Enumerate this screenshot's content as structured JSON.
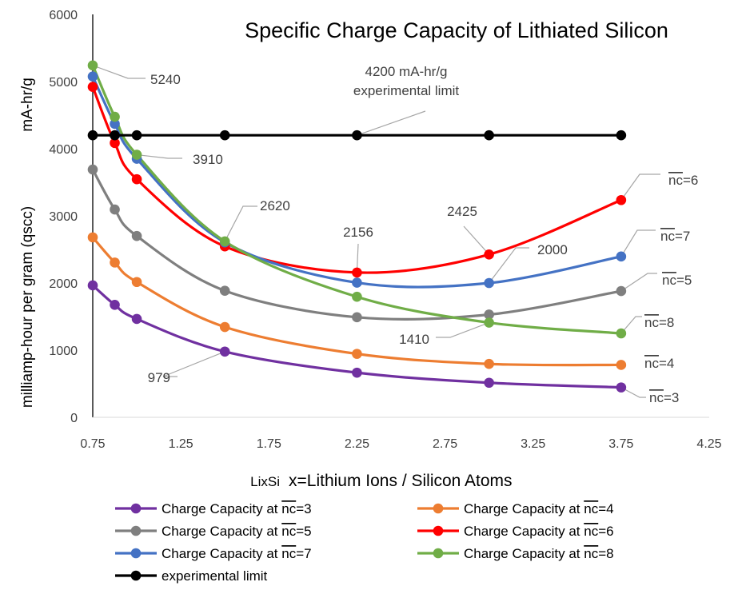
{
  "chart_data": {
    "type": "line",
    "title": "Specific Charge Capacity of Lithiated Silicon",
    "ylabel": "milliamp-hour per gram (qscc)",
    "ylabel_unit": "mA-hr/g",
    "xlabel_formula": "LixSi",
    "xlabel": "x=Lithium Ions / Silicon Atoms",
    "xlim": [
      0.75,
      4.25
    ],
    "ylim": [
      0,
      6000
    ],
    "xticks": [
      "0.75",
      "1.25",
      "1.75",
      "2.25",
      "2.75",
      "3.25",
      "3.75",
      "4.25"
    ],
    "yticks": [
      "0",
      "1000",
      "2000",
      "3000",
      "4000",
      "5000",
      "6000"
    ],
    "grid": false,
    "legend_position": "bottom",
    "series": [
      {
        "name": "Charge Capacity at ",
        "name_over": "nc",
        "name_suffix": "=3",
        "color": "#7030a0",
        "x": [
          0.75,
          0.875,
          1.0,
          1.5,
          2.25,
          3.0,
          3.75
        ],
        "y": [
          1965,
          1675,
          1465,
          979,
          665,
          515,
          445
        ]
      },
      {
        "name": "Charge Capacity at ",
        "name_over": "nc",
        "name_suffix": "=4",
        "color": "#ed7d31",
        "x": [
          0.75,
          0.875,
          1.0,
          1.5,
          2.25,
          3.0,
          3.75
        ],
        "y": [
          2680,
          2305,
          2015,
          1345,
          945,
          795,
          780
        ]
      },
      {
        "name": "Charge Capacity at ",
        "name_over": "nc",
        "name_suffix": "=5",
        "color": "#7f7f7f",
        "x": [
          0.75,
          0.875,
          1.0,
          1.5,
          2.25,
          3.0,
          3.75
        ],
        "y": [
          3690,
          3095,
          2700,
          1885,
          1490,
          1530,
          1880
        ]
      },
      {
        "name": "Charge Capacity at ",
        "name_over": "nc",
        "name_suffix": "=6",
        "color": "#ff0000",
        "x": [
          0.75,
          0.875,
          1.0,
          1.5,
          2.25,
          3.0,
          3.75
        ],
        "y": [
          4920,
          4085,
          3545,
          2545,
          2156,
          2425,
          3235
        ]
      },
      {
        "name": "Charge Capacity at ",
        "name_over": "nc",
        "name_suffix": "=7",
        "color": "#4472c4",
        "x": [
          0.75,
          0.875,
          1.0,
          1.5,
          2.25,
          3.0,
          3.75
        ],
        "y": [
          5075,
          4370,
          3850,
          2605,
          2005,
          2000,
          2395
        ]
      },
      {
        "name": "Charge Capacity at ",
        "name_over": "nc",
        "name_suffix": "=8",
        "color": "#70ad47",
        "x": [
          0.75,
          0.875,
          1.0,
          1.5,
          2.25,
          3.0,
          3.75
        ],
        "y": [
          5240,
          4475,
          3910,
          2620,
          1795,
          1410,
          1250
        ]
      },
      {
        "name": "experimental limit",
        "color": "#000000",
        "straight": true,
        "x": [
          0.75,
          0.875,
          1.0,
          1.5,
          2.25,
          3.0,
          3.75
        ],
        "y": [
          4200,
          4200,
          4200,
          4200,
          4200,
          4200,
          4200
        ]
      }
    ],
    "annotations": [
      {
        "text": "5240",
        "x": 0.75,
        "y": 5240
      },
      {
        "text": "4200 mA-hr/g",
        "text2": "experimental limit",
        "x": 2.25,
        "y": 4200
      },
      {
        "text": "3910",
        "x": 1.0,
        "y": 3910
      },
      {
        "text": "2620",
        "x": 1.5,
        "y": 2620
      },
      {
        "text": "2156",
        "x": 2.25,
        "y": 2156
      },
      {
        "text": "2425",
        "x": 3.0,
        "y": 2425
      },
      {
        "text": "2000",
        "x": 3.0,
        "y": 2000
      },
      {
        "text": "1410",
        "x": 3.0,
        "y": 1410
      },
      {
        "text": "979",
        "x": 1.5,
        "y": 979
      }
    ],
    "series_end_labels": [
      {
        "over": "nc",
        "suffix": "=6",
        "x": 3.75,
        "y": 3235
      },
      {
        "over": "nc",
        "suffix": "=7",
        "x": 3.75,
        "y": 2395
      },
      {
        "over": "nc",
        "suffix": "=5",
        "x": 3.75,
        "y": 1880
      },
      {
        "over": "nc",
        "suffix": "=8",
        "x": 3.75,
        "y": 1250
      },
      {
        "over": "nc",
        "suffix": "=4",
        "x": 3.75,
        "y": 780
      },
      {
        "over": "nc",
        "suffix": "=3",
        "x": 3.75,
        "y": 445
      }
    ]
  }
}
